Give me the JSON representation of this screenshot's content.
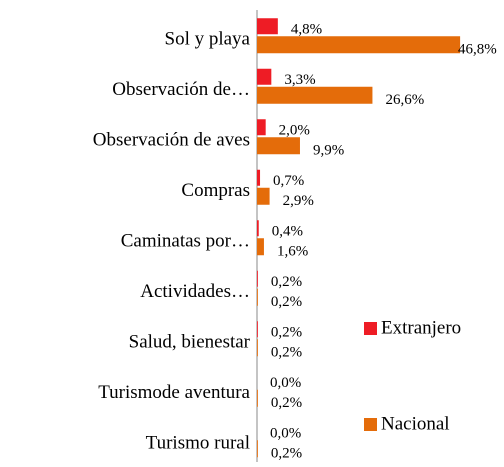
{
  "chart_data": {
    "type": "hbar",
    "categories": [
      "Sol y playa",
      "Observación de…",
      "Observación de aves",
      "Compras",
      "Caminatas por…",
      "Actividades…",
      "Salud, bienestar",
      "Turismode aventura",
      "Turismo rural"
    ],
    "series": [
      {
        "name": "Extranjero",
        "color": "#ee1c25",
        "values": [
          4.8,
          3.3,
          2.0,
          0.7,
          0.4,
          0.2,
          0.2,
          0.0,
          0.0
        ],
        "value_labels": [
          "4,8%",
          "3,3%",
          "2,0%",
          "0,7%",
          "0,4%",
          "0,2%",
          "0,2%",
          "0,0%",
          "0,0%"
        ]
      },
      {
        "name": "Nacional",
        "color": "#e46c0a",
        "values": [
          46.8,
          26.6,
          9.9,
          2.9,
          1.6,
          0.2,
          0.2,
          0.2,
          0.2
        ],
        "value_labels": [
          "46,8%",
          "26,6%",
          "9,9%",
          "2,9%",
          "1,6%",
          "0,2%",
          "0,2%",
          "0,2%",
          "0,2%"
        ]
      }
    ],
    "legend": "right"
  }
}
